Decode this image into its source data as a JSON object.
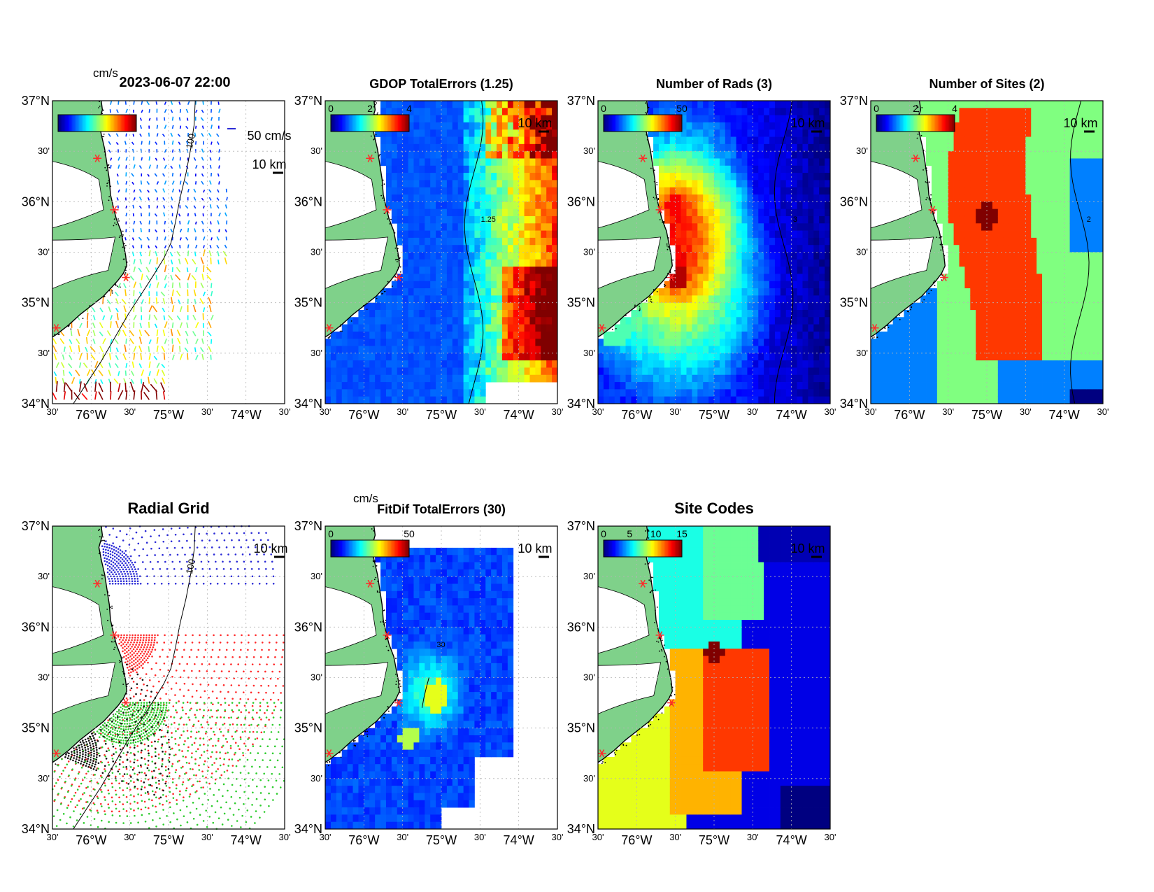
{
  "figure": {
    "colors": {
      "land": "#7fd18a",
      "frame": "#000000",
      "grid": "#b5b5b5",
      "site_marker": "#ff2a2a",
      "radial_site_colors": [
        "#2b2bd6",
        "#ff2a2a",
        "#2ecc2e",
        "#111111"
      ]
    },
    "lat_tick_labels": [
      "37°N",
      "30'",
      "36°N",
      "30'",
      "35°N",
      "30'",
      "34°N"
    ],
    "lon_tick_labels": [
      "30'",
      "76°W",
      "30'",
      "75°W",
      "30'",
      "74°W",
      "30'"
    ],
    "scale_bar_label": "10 km",
    "contour_label_100": "100"
  },
  "chart_data": [
    {
      "type": "heatmap",
      "title": "2023-06-07 22:00",
      "subtitle": "cm/s",
      "colorbar_ticks": [],
      "extra_labels": [
        "50 cm/s"
      ],
      "xlim": [
        -76.5,
        -73.5
      ],
      "ylim": [
        34,
        37
      ],
      "notes": "current vector map (quiver), coast + 100 m isobath"
    },
    {
      "type": "heatmap",
      "title": "GDOP TotalErrors (1.25)",
      "colorbar_ticks": [
        "0",
        "2",
        "4"
      ],
      "contour_level": "1.25",
      "xlim": [
        -76.5,
        -73.5
      ],
      "ylim": [
        34,
        37
      ]
    },
    {
      "type": "heatmap",
      "title": "Number of Rads (3)",
      "colorbar_ticks": [
        "0",
        "50"
      ],
      "contour_level": "3",
      "xlim": [
        -76.5,
        -73.5
      ],
      "ylim": [
        34,
        37
      ]
    },
    {
      "type": "heatmap",
      "title": "Number of Sites (2)",
      "colorbar_ticks": [
        "0",
        "2",
        "4"
      ],
      "contour_level": "2",
      "xlim": [
        -76.5,
        -73.5
      ],
      "ylim": [
        34,
        37
      ]
    },
    {
      "type": "scatter",
      "title": "Radial Grid",
      "series": [
        {
          "site": 1,
          "lon": -75.92,
          "lat": 36.43
        },
        {
          "site": 2,
          "lon": -75.7,
          "lat": 35.92
        },
        {
          "site": 3,
          "lon": -75.55,
          "lat": 35.25
        },
        {
          "site": 4,
          "lon": -76.45,
          "lat": 34.75
        }
      ],
      "xlim": [
        -76.5,
        -73.5
      ],
      "ylim": [
        34,
        37
      ]
    },
    {
      "type": "heatmap",
      "title": "FitDif TotalErrors (30)",
      "subtitle": "cm/s",
      "colorbar_ticks": [
        "0",
        "50"
      ],
      "contour_level": "30",
      "xlim": [
        -76.5,
        -73.5
      ],
      "ylim": [
        34,
        37
      ]
    },
    {
      "type": "heatmap",
      "title": "Site Codes",
      "colorbar_ticks": [
        "0",
        "5",
        "10",
        "15"
      ],
      "xlim": [
        -76.5,
        -73.5
      ],
      "ylim": [
        34,
        37
      ]
    }
  ]
}
